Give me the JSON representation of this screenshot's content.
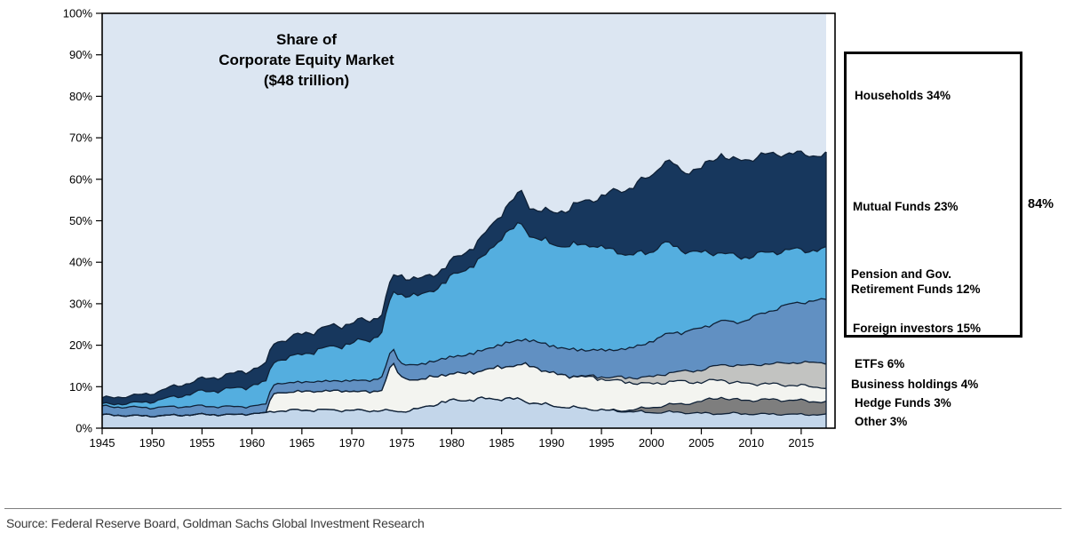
{
  "title": {
    "line1": "Share of",
    "line2": "Corporate Equity Market",
    "line3": "($48 trillion)"
  },
  "legend": {
    "box_items": [
      {
        "label": "Households 34%"
      },
      {
        "label": "Mutual Funds 23%"
      },
      {
        "label": "Pension and Gov.",
        "label2": "Retirement Funds 12%"
      },
      {
        "label": "Foreign investors 15%"
      }
    ],
    "bracket_total": "84%",
    "outside_items": [
      "ETFs 6%",
      "Business holdings 4%",
      "Hedge Funds 3%",
      "Other 3%"
    ]
  },
  "source": "Source: Federal Reserve Board, Goldman Sachs Global Investment Research",
  "chart_data": {
    "type": "area",
    "stacked": true,
    "title": "Share of Corporate Equity Market ($48 trillion)",
    "x_range": [
      1945,
      2017.5
    ],
    "y_range": [
      0,
      100
    ],
    "grid": false,
    "x_ticks": [
      "1945",
      "1950",
      "1955",
      "1960",
      "1965",
      "1970",
      "1975",
      "1980",
      "1985",
      "1990",
      "1995",
      "2000",
      "2005",
      "2010",
      "2015"
    ],
    "x_tick_years": [
      1945,
      1950,
      1955,
      1960,
      1965,
      1970,
      1975,
      1980,
      1985,
      1990,
      1995,
      2000,
      2005,
      2010,
      2015
    ],
    "y_ticks": [
      "0%",
      "10%",
      "20%",
      "30%",
      "40%",
      "50%",
      "60%",
      "70%",
      "80%",
      "90%",
      "100%"
    ],
    "y_tick_values": [
      0,
      10,
      20,
      30,
      40,
      50,
      60,
      70,
      80,
      90,
      100
    ],
    "stroke_color": "#0f2137",
    "keyframe_years": [
      1945,
      1948,
      1950,
      1952,
      1955,
      1958,
      1960,
      1961.5,
      1962,
      1964,
      1967,
      1970,
      1972,
      1973,
      1974,
      1975,
      1977,
      1979,
      1981,
      1983,
      1985,
      1986,
      1987,
      1988,
      1989,
      1990,
      1992,
      1994,
      1996,
      1998,
      2000,
      2001,
      2002,
      2003,
      2005,
      2007,
      2008,
      2009,
      2011,
      2013,
      2015,
      2017.5
    ],
    "series": [
      {
        "name": "Other",
        "end_share_label": "3%",
        "color": "#c3d6ea",
        "values": [
          3.2,
          3.0,
          2.9,
          3.1,
          3.3,
          3.2,
          3.5,
          3.6,
          4.1,
          4.3,
          4.4,
          4.3,
          4.2,
          4.3,
          4.1,
          4.0,
          4.8,
          6.3,
          6.8,
          7.0,
          7.2,
          7.0,
          6.8,
          6.2,
          5.8,
          5.4,
          5.0,
          4.6,
          4.2,
          4.0,
          3.8,
          3.8,
          3.9,
          3.8,
          3.6,
          3.5,
          3.6,
          3.5,
          3.4,
          3.4,
          3.3,
          3.3
        ]
      },
      {
        "name": "Hedge Funds",
        "end_share_label": "3%",
        "color": "#7e7e7e",
        "values": [
          0,
          0,
          0,
          0,
          0,
          0,
          0,
          0,
          0,
          0,
          0,
          0,
          0,
          0,
          0,
          0,
          0,
          0,
          0,
          0,
          0,
          0,
          0,
          0,
          0,
          0,
          0,
          0,
          0,
          0.4,
          1.2,
          1.5,
          1.8,
          2.0,
          2.8,
          4.0,
          3.2,
          3.2,
          3.4,
          3.4,
          3.3,
          3.0
        ]
      },
      {
        "name": "Business holdings",
        "end_share_label": "4%",
        "color": "#f3f4f0",
        "values": [
          0,
          0,
          0,
          0,
          0,
          0,
          0,
          0,
          4.3,
          4.5,
          4.6,
          4.7,
          4.5,
          5.0,
          12.0,
          8.0,
          7.0,
          6.6,
          6.5,
          6.8,
          7.8,
          8.0,
          8.5,
          9.0,
          8.4,
          7.9,
          7.6,
          7.7,
          7.4,
          6.6,
          5.7,
          5.6,
          5.6,
          5.5,
          4.6,
          4.3,
          4.2,
          4.1,
          3.9,
          3.7,
          3.6,
          3.5
        ]
      },
      {
        "name": "ETFs",
        "end_share_label": "6%",
        "color": "#c2c3c1",
        "values": [
          0,
          0,
          0,
          0,
          0,
          0,
          0,
          0,
          0,
          0,
          0,
          0,
          0,
          0,
          0,
          0,
          0,
          0,
          0,
          0,
          0,
          0,
          0,
          0,
          0,
          0,
          0,
          0.3,
          0.7,
          1.2,
          1.7,
          2.0,
          2.2,
          2.4,
          3.0,
          3.6,
          4.2,
          4.3,
          4.7,
          5.2,
          5.7,
          6.0
        ]
      },
      {
        "name": "Foreign investors",
        "end_share_label": "15%",
        "color": "#6190c2",
        "values": [
          2.0,
          2.0,
          2.0,
          2.0,
          2.0,
          1.9,
          1.8,
          2.0,
          2.2,
          2.2,
          2.3,
          2.5,
          2.8,
          3.0,
          3.5,
          3.3,
          3.6,
          3.8,
          4.2,
          4.8,
          5.3,
          5.7,
          6.0,
          6.0,
          6.3,
          6.5,
          6.3,
          6.2,
          6.5,
          7.0,
          8.5,
          9.0,
          9.5,
          9.3,
          10.0,
          10.5,
          10.2,
          10.5,
          12.0,
          13.5,
          14.5,
          15.0
        ]
      },
      {
        "name": "Pension and Gov. Retirement Funds",
        "end_share_label": "12%",
        "color": "#54aedf",
        "values": [
          0.5,
          1.0,
          1.5,
          2.3,
          3.5,
          4.3,
          5.0,
          5.3,
          5.5,
          6.2,
          7.8,
          9.0,
          10.0,
          11.0,
          13.0,
          17.0,
          16.5,
          18.0,
          20.5,
          22.0,
          26.0,
          27.0,
          28.0,
          25.0,
          24.8,
          24.5,
          25.0,
          25.5,
          24.0,
          22.5,
          21.5,
          22.5,
          21.0,
          20.0,
          18.0,
          16.5,
          16.0,
          15.5,
          14.5,
          13.5,
          12.5,
          12.0
        ]
      },
      {
        "name": "Mutual Funds",
        "end_share_label": "23%",
        "color": "#17375d",
        "values": [
          1.5,
          1.8,
          2.0,
          2.5,
          3.0,
          3.6,
          4.0,
          4.3,
          4.5,
          4.8,
          5.0,
          5.0,
          4.8,
          4.5,
          4.0,
          4.5,
          4.0,
          3.6,
          4.0,
          5.0,
          6.0,
          7.0,
          7.5,
          7.0,
          7.3,
          7.5,
          9.5,
          11.0,
          14.0,
          16.5,
          18.5,
          19.5,
          20.0,
          19.0,
          20.5,
          24.0,
          23.0,
          23.5,
          23.8,
          23.6,
          23.2,
          23.0
        ]
      },
      {
        "name": "Households",
        "end_share_label": "34%",
        "color": "#dce6f2",
        "remainder_to_100": true
      }
    ]
  }
}
